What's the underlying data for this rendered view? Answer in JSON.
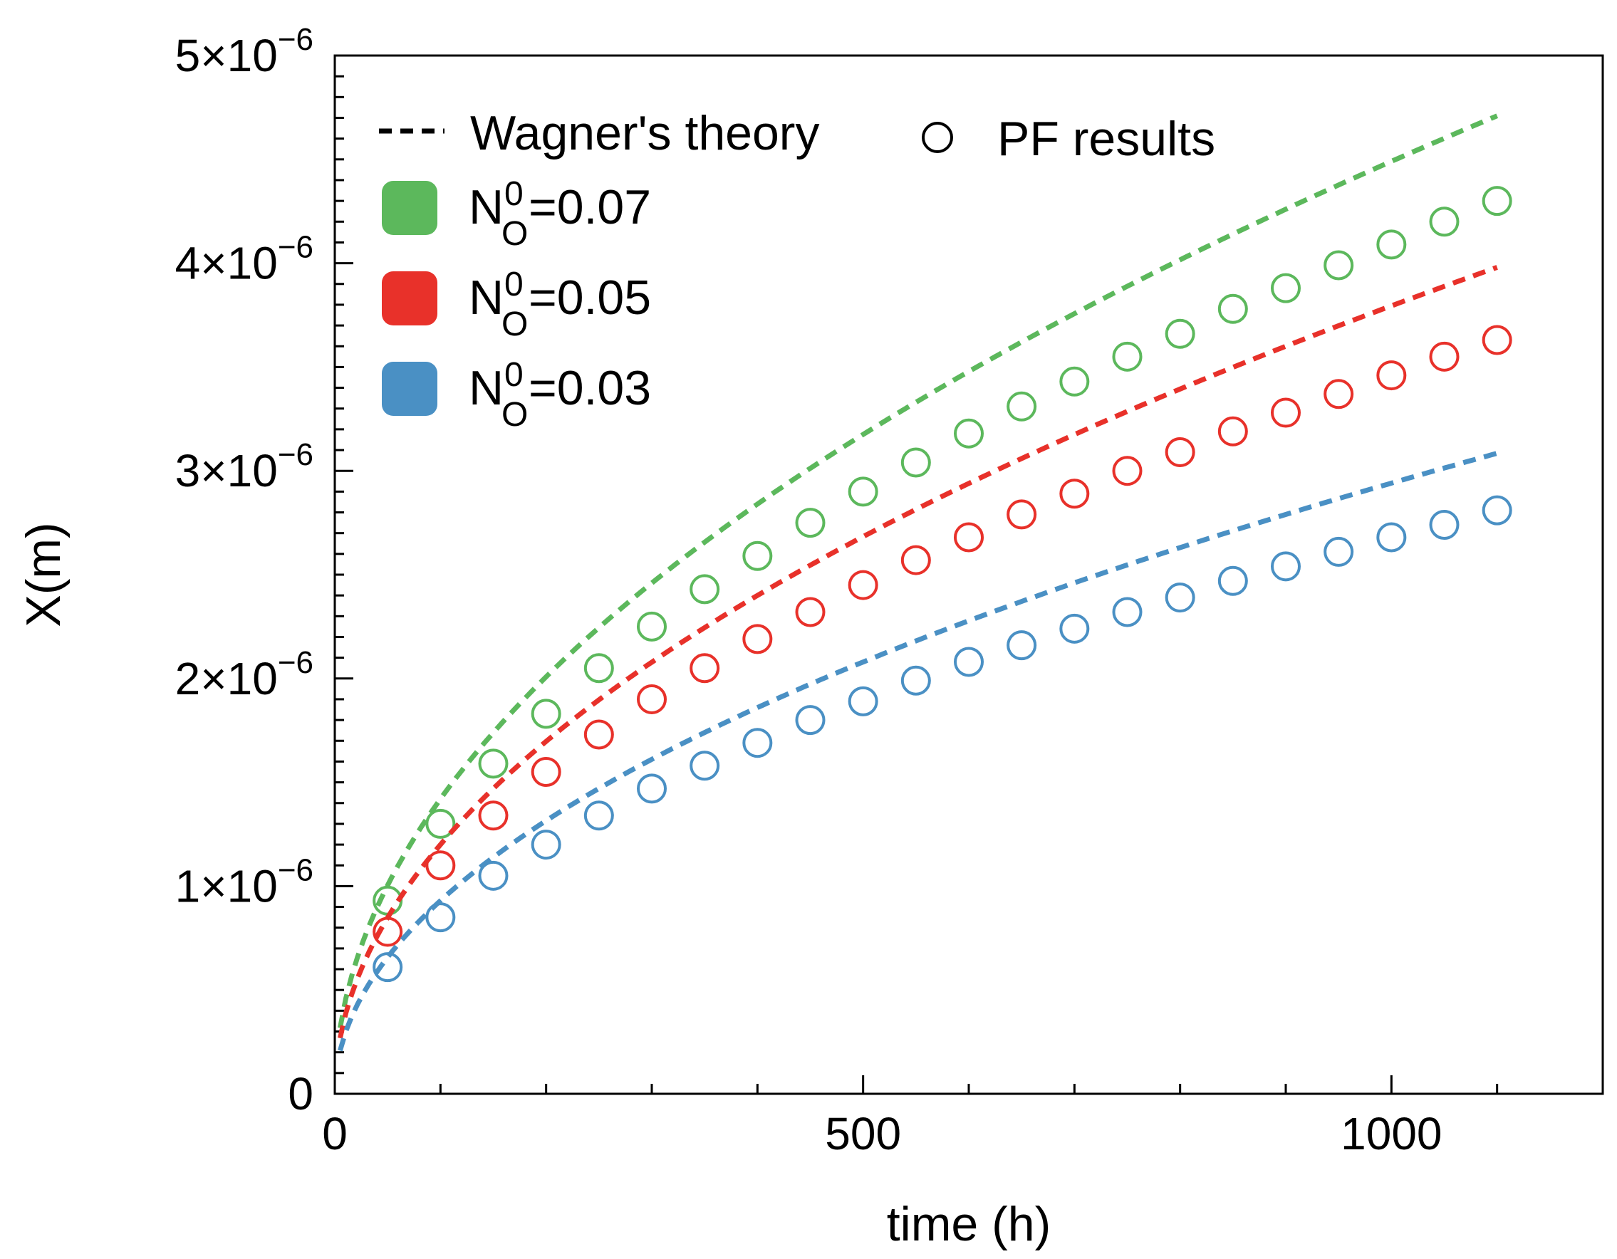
{
  "chart_data": {
    "type": "line",
    "title": "",
    "xlabel": "time (h)",
    "ylabel": "X(m)",
    "xlim": [
      0,
      1200
    ],
    "ylim": [
      0,
      5e-06
    ],
    "x_ticks": [
      {
        "value": 0,
        "label": "0"
      },
      {
        "value": 500,
        "label": "500"
      },
      {
        "value": 1000,
        "label": "1000"
      }
    ],
    "y_ticks": [
      {
        "value": 0,
        "base": "0",
        "exp": ""
      },
      {
        "value": 1e-06,
        "base": "1×10",
        "exp": "−6"
      },
      {
        "value": 2e-06,
        "base": "2×10",
        "exp": "−6"
      },
      {
        "value": 3e-06,
        "base": "3×10",
        "exp": "−6"
      },
      {
        "value": 4e-06,
        "base": "4×10",
        "exp": "−6"
      },
      {
        "value": 5e-06,
        "base": "5×10",
        "exp": "−6"
      }
    ],
    "legend": {
      "placement": "top-left",
      "theory_label": "Wagner's theory",
      "pf_label": "PF results",
      "entries": [
        {
          "base": "N",
          "sup": "0",
          "sub": "O",
          "value": "=0.07",
          "color": "#5cb85c"
        },
        {
          "base": "N",
          "sup": "0",
          "sub": "O",
          "value": "=0.05",
          "color": "#e8312a"
        },
        {
          "base": "N",
          "sup": "0",
          "sub": "O",
          "value": "=0.03",
          "color": "#4a90c4"
        }
      ]
    },
    "series": [
      {
        "name": "N_O^0=0.07",
        "color": "#5cb85c",
        "theory_k": 1.42e-07,
        "theory_x_range": [
          5,
          1100
        ],
        "pf_x": [
          50,
          100,
          150,
          200,
          250,
          300,
          350,
          400,
          450,
          500,
          550,
          600,
          650,
          700,
          750,
          800,
          850,
          900,
          950,
          1000,
          1050,
          1100
        ],
        "pf_y": [
          9.3e-07,
          1.3e-06,
          1.59e-06,
          1.83e-06,
          2.05e-06,
          2.25e-06,
          2.43e-06,
          2.59e-06,
          2.75e-06,
          2.9e-06,
          3.04e-06,
          3.18e-06,
          3.31e-06,
          3.43e-06,
          3.55e-06,
          3.66e-06,
          3.78e-06,
          3.88e-06,
          3.99e-06,
          4.09e-06,
          4.2e-06,
          4.3e-06
        ]
      },
      {
        "name": "N_O^0=0.05",
        "color": "#e8312a",
        "theory_k": 1.2e-07,
        "theory_x_range": [
          5,
          1100
        ],
        "pf_x": [
          50,
          100,
          150,
          200,
          250,
          300,
          350,
          400,
          450,
          500,
          550,
          600,
          650,
          700,
          750,
          800,
          850,
          900,
          950,
          1000,
          1050,
          1100
        ],
        "pf_y": [
          7.8e-07,
          1.1e-06,
          1.34e-06,
          1.55e-06,
          1.73e-06,
          1.9e-06,
          2.05e-06,
          2.19e-06,
          2.32e-06,
          2.45e-06,
          2.57e-06,
          2.68e-06,
          2.79e-06,
          2.89e-06,
          3e-06,
          3.09e-06,
          3.19e-06,
          3.28e-06,
          3.37e-06,
          3.46e-06,
          3.55e-06,
          3.63e-06
        ]
      },
      {
        "name": "N_O^0=0.03",
        "color": "#4a90c4",
        "theory_k": 9.3e-08,
        "theory_x_range": [
          5,
          1100
        ],
        "pf_x": [
          50,
          100,
          150,
          200,
          250,
          300,
          350,
          400,
          450,
          500,
          550,
          600,
          650,
          700,
          750,
          800,
          850,
          900,
          950,
          1000,
          1050,
          1100
        ],
        "pf_y": [
          6.1e-07,
          8.5e-07,
          1.05e-06,
          1.2e-06,
          1.34e-06,
          1.47e-06,
          1.58e-06,
          1.69e-06,
          1.8e-06,
          1.89e-06,
          1.99e-06,
          2.08e-06,
          2.16e-06,
          2.24e-06,
          2.32e-06,
          2.39e-06,
          2.47e-06,
          2.54e-06,
          2.61e-06,
          2.68e-06,
          2.74e-06,
          2.81e-06
        ]
      }
    ]
  }
}
